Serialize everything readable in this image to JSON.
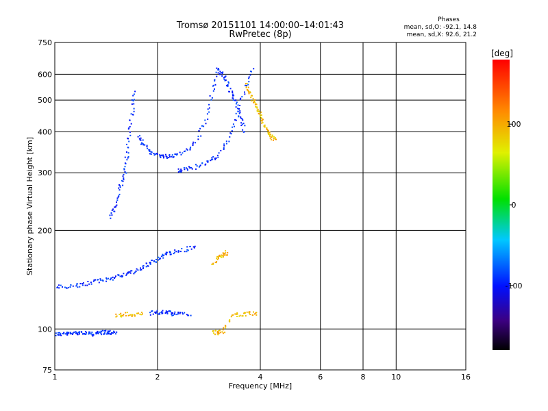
{
  "chart_data": {
    "type": "scatter",
    "title": "Tromsø 20151101 14:00:00–14:01:43",
    "subtitle": "RwPretec (8p)",
    "xlabel": "Frequency [MHz]",
    "ylabel": "Stationary phase Virtual Height [km]",
    "x_scale": "log",
    "y_scale": "log",
    "xlim": [
      1,
      16
    ],
    "ylim": [
      75,
      750
    ],
    "x_ticks": [
      1,
      2,
      4,
      6,
      8,
      10,
      16
    ],
    "y_ticks": [
      75,
      100,
      200,
      300,
      400,
      500,
      600,
      750
    ],
    "grid": true,
    "stats": {
      "heading": "Phases",
      "line_o": "mean, sd,O: -92.1, 14.8",
      "line_x": "mean, sd,X:  92.6, 21.2"
    },
    "colorbar": {
      "label": "[deg]",
      "min": -180,
      "max": 180,
      "ticks": [
        100,
        0,
        -100
      ],
      "colormap": "rainbow"
    },
    "series": [
      {
        "name": "O",
        "phase_mean": -92.1,
        "phase_sd": 14.8,
        "traces": [
          {
            "x": [
              1.0,
              1.05,
              1.1,
              1.15,
              1.2,
              1.25,
              1.3,
              1.35,
              1.4,
              1.45,
              1.5
            ],
            "y": [
              97,
              97,
              97,
              98,
              98,
              97,
              97,
              98,
              98,
              98,
              98
            ]
          },
          {
            "x": [
              1.0,
              1.1,
              1.2,
              1.3,
              1.4,
              1.5,
              1.6,
              1.7,
              1.8,
              1.9,
              2.0,
              2.1,
              2.2,
              2.4,
              2.6
            ],
            "y": [
              135,
              135,
              137,
              140,
              142,
              145,
              148,
              150,
              155,
              160,
              165,
              170,
              172,
              175,
              180
            ]
          },
          {
            "x": [
              1.45,
              1.5,
              1.55,
              1.6,
              1.62,
              1.65,
              1.68,
              1.7
            ],
            "y": [
              220,
              240,
              270,
              300,
              340,
              400,
              470,
              540
            ]
          },
          {
            "x": [
              1.75,
              1.8,
              1.9,
              2.0,
              2.1,
              2.2,
              2.4,
              2.6,
              2.8,
              2.9,
              3.0
            ],
            "y": [
              390,
              370,
              350,
              340,
              338,
              340,
              350,
              380,
              450,
              550,
              640
            ]
          },
          {
            "x": [
              2.3,
              2.4,
              2.6,
              2.8,
              3.0,
              3.2,
              3.4,
              3.6,
              3.8
            ],
            "y": [
              305,
              308,
              315,
              325,
              340,
              380,
              450,
              550,
              640
            ]
          },
          {
            "x": [
              3.0,
              3.1,
              3.2,
              3.3,
              3.4,
              3.5,
              3.6
            ],
            "y": [
              620,
              600,
              560,
              520,
              480,
              440,
              400
            ]
          },
          {
            "x": [
              1.9,
              2.0,
              2.1,
              2.2,
              2.3,
              2.5
            ],
            "y": [
              112,
              113,
              113,
              112,
              112,
              112
            ]
          }
        ]
      },
      {
        "name": "X",
        "phase_mean": 92.6,
        "phase_sd": 21.2,
        "traces": [
          {
            "x": [
              3.6,
              3.7,
              3.8,
              3.9,
              4.0,
              4.1,
              4.2,
              4.3,
              4.4
            ],
            "y": [
              560,
              530,
              500,
              470,
              450,
              420,
              400,
              385,
              380
            ]
          },
          {
            "x": [
              2.9,
              3.0,
              3.1,
              3.2
            ],
            "y": [
              160,
              165,
              170,
              172
            ]
          },
          {
            "x": [
              2.9,
              3.0,
              3.1,
              3.3,
              3.5,
              3.7,
              3.9
            ],
            "y": [
              98,
              98,
              99,
              111,
              111,
              112,
              112
            ]
          },
          {
            "x": [
              1.5,
              1.6,
              1.7,
              1.8
            ],
            "y": [
              110,
              112,
              111,
              112
            ]
          }
        ]
      }
    ]
  }
}
